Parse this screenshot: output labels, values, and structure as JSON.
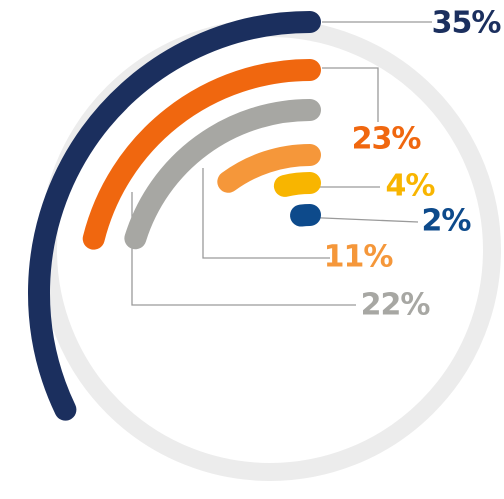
{
  "chart_data": {
    "type": "radial_bar",
    "values": [
      35,
      23,
      22,
      11,
      4,
      2
    ],
    "value_labels": [
      "35%",
      "23%",
      "22%",
      "11%",
      "4%",
      "2%"
    ],
    "colors": [
      "#1b2f5e",
      "#f0670f",
      "#a7a7a3",
      "#f5973a",
      "#f8b500",
      "#0d4a8b"
    ]
  }
}
